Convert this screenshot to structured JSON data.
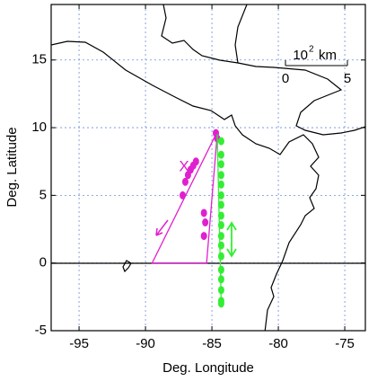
{
  "chart_data": {
    "type": "scatter",
    "xlabel": "Deg. Longitude",
    "ylabel": "Deg. Latitude",
    "xlim": [
      -97.1,
      -73.45
    ],
    "ylim": [
      -5,
      19.1
    ],
    "xticks": [
      -95,
      -90,
      -85,
      -80,
      -75
    ],
    "yticks": [
      -5,
      0,
      5,
      10,
      15
    ],
    "grid": true,
    "annotation": "X",
    "scale_bar": {
      "base": "10",
      "exponent": "2",
      "unit": "km",
      "ticks": [
        0,
        5
      ]
    },
    "series": [
      {
        "color": "#e020d0",
        "mode": "line",
        "x": [
          -84.7,
          -89.5,
          -85.4,
          -84.6
        ],
        "values": [
          9.5,
          0,
          0,
          9.5
        ]
      },
      {
        "color": "#e020d0",
        "mode": "points",
        "x": [
          -84.7,
          -86.2,
          -86.4,
          -86.6,
          -86.8,
          -87.0,
          -87.2,
          -85.6,
          -85.5,
          -85.6,
          -84.6
        ],
        "values": [
          9.6,
          7.5,
          7.2,
          6.9,
          6.5,
          6.0,
          5.0,
          3.7,
          3.0,
          2.0,
          9.2
        ]
      },
      {
        "color": "#33ee33",
        "mode": "line",
        "x": [
          -84.6,
          -84.3
        ],
        "values": [
          9.5,
          -3.0
        ]
      },
      {
        "color": "#33ee33",
        "mode": "points",
        "x": [
          -84.3,
          -84.3,
          -84.3,
          -84.3,
          -84.3,
          -84.3,
          -84.3,
          -84.3,
          -84.3,
          -84.3,
          -84.3,
          -84.3,
          -84.3,
          -84.3,
          -84.3,
          -84.3,
          -84.3
        ],
        "values": [
          9.0,
          8.0,
          7.3,
          6.5,
          5.8,
          5.0,
          4.3,
          3.5,
          2.8,
          2.0,
          1.3,
          0.5,
          -0.5,
          -1.2,
          -2.0,
          -2.8,
          -3.0
        ]
      }
    ]
  }
}
